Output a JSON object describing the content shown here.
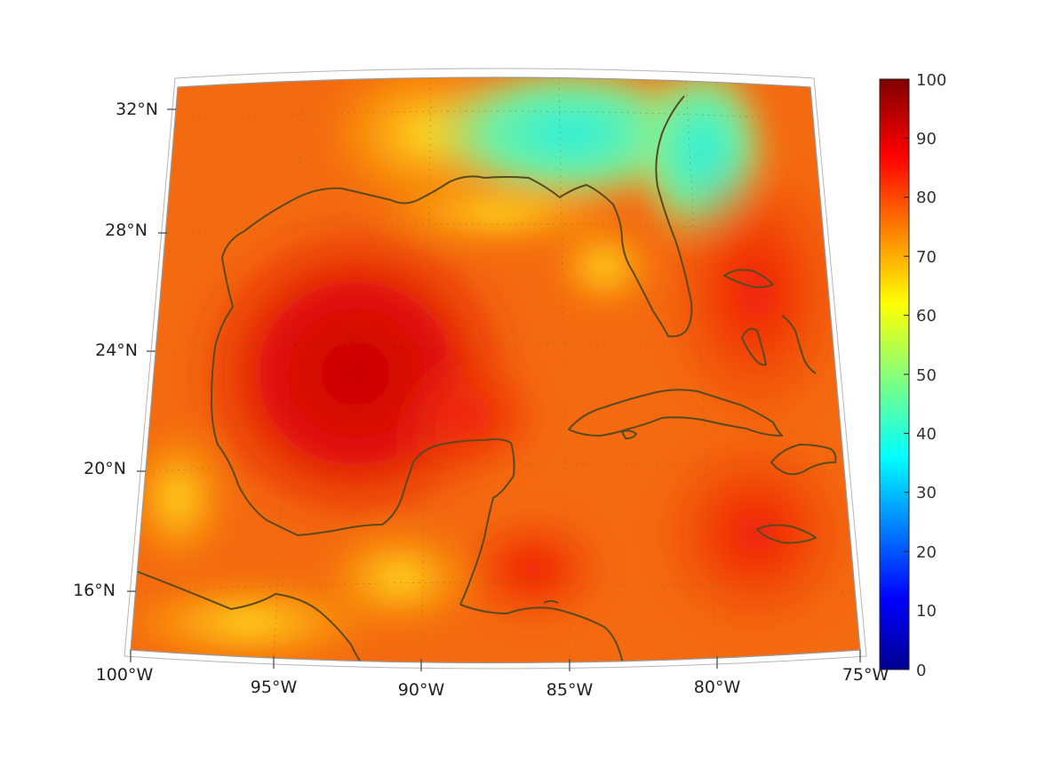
{
  "map": {
    "projection": "conic",
    "lon_range": [
      -100,
      -75
    ],
    "lat_range": [
      14,
      33
    ],
    "lon_ticks": [
      "100°W",
      "95°W",
      "90°W",
      "85°W",
      "80°W",
      "75°W"
    ],
    "lat_ticks": [
      "32°N",
      "28°N",
      "24°N",
      "20°N",
      "16°N"
    ],
    "coastline_color": "#5a4a1e",
    "grid": "dotted"
  },
  "colorbar": {
    "colormap": "jet",
    "min": 0,
    "max": 100,
    "ticks": [
      "100",
      "90",
      "80",
      "70",
      "60",
      "50",
      "40",
      "30",
      "20",
      "10",
      "0"
    ]
  }
}
